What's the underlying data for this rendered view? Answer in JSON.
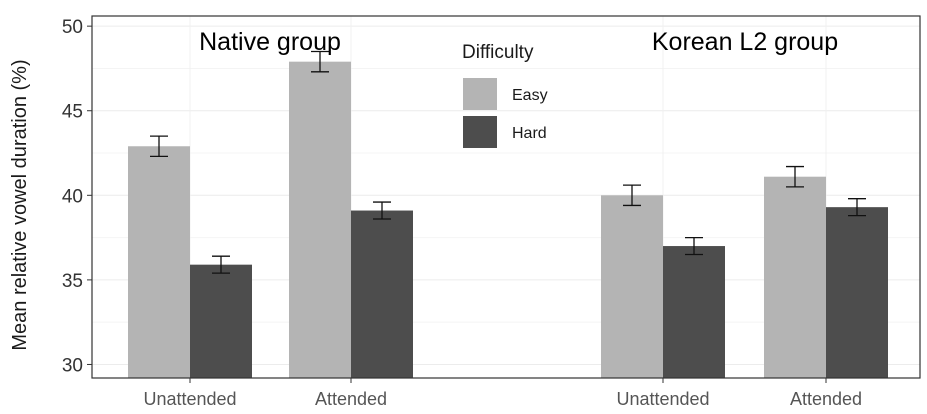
{
  "chart_data": {
    "type": "bar",
    "ylabel": "Mean relative vowel duration (%)",
    "ylim": [
      29.2,
      50.6
    ],
    "yticks": [
      30,
      35,
      40,
      45,
      50
    ],
    "grid": true,
    "legend": {
      "title": "Difficulty",
      "position": "top-center",
      "entries": [
        {
          "name": "Easy",
          "color": "#b4b4b4"
        },
        {
          "name": "Hard",
          "color": "#4d4d4d"
        }
      ]
    },
    "panels": [
      {
        "title": "Native group",
        "categories": [
          "Unattended",
          "Attended"
        ],
        "series": [
          {
            "name": "Easy",
            "values": [
              42.9,
              47.9
            ],
            "errors": [
              0.6,
              0.6
            ]
          },
          {
            "name": "Hard",
            "values": [
              35.9,
              39.1
            ],
            "errors": [
              0.5,
              0.5
            ]
          }
        ]
      },
      {
        "title": "Korean L2 group",
        "categories": [
          "Unattended",
          "Attended"
        ],
        "series": [
          {
            "name": "Easy",
            "values": [
              40.0,
              41.1
            ],
            "errors": [
              0.6,
              0.6
            ]
          },
          {
            "name": "Hard",
            "values": [
              37.0,
              39.3
            ],
            "errors": [
              0.5,
              0.5
            ]
          }
        ]
      }
    ]
  }
}
